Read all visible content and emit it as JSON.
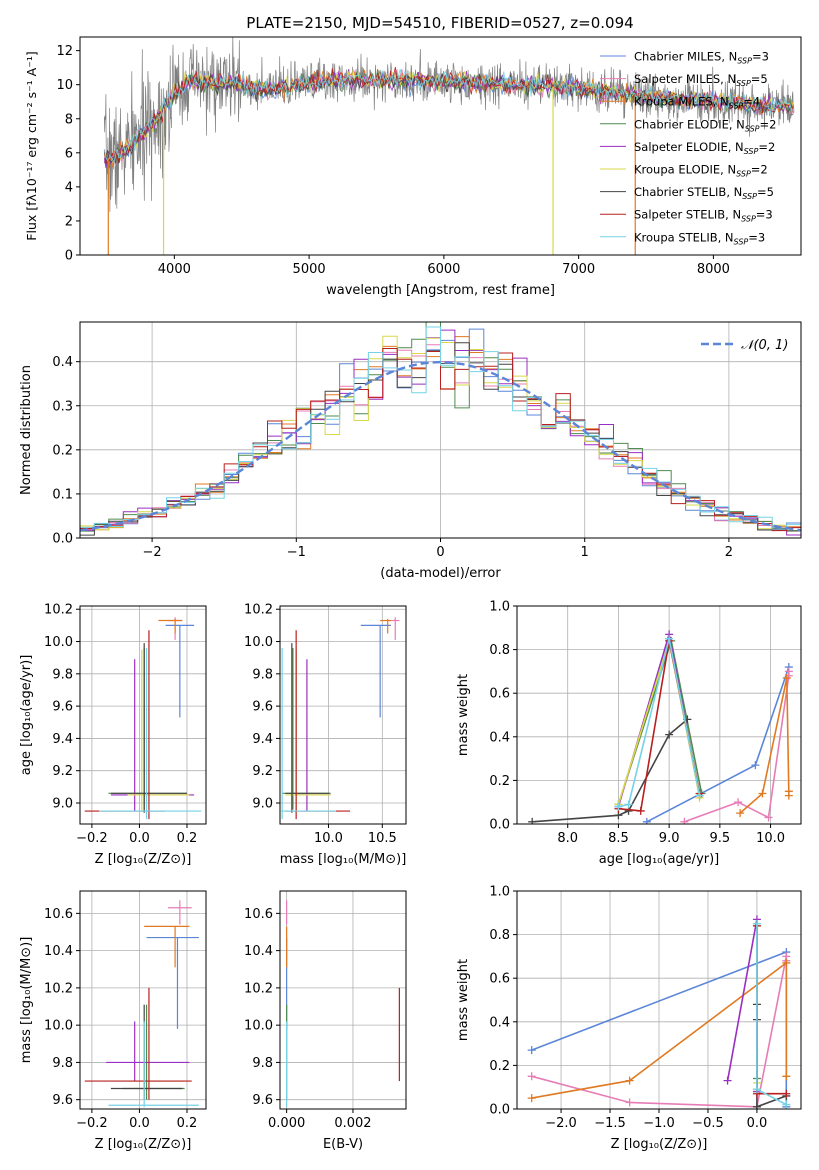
{
  "title": "PLATE=2150, MJD=54510, FIBERID=0527, z=0.094",
  "colors": {
    "blue": "#5b86d8",
    "orange": "#e07a22",
    "pink": "#e87cb6",
    "green": "#4f8a4f",
    "purple": "#9b2fc2",
    "yellow": "#d8d84a",
    "dark": "#454545",
    "red": "#b81f1f",
    "cyan": "#74d3e6",
    "grid": "#b0b0b0",
    "data": "#7f7f7f"
  },
  "chart_data": [
    {
      "id": "spectrum",
      "type": "line",
      "title": "PLATE=2150, MJD=54510, FIBERID=0527, z=0.094",
      "xlabel": "wavelength [Angstrom, rest frame]",
      "ylabel": "Flux [fλ10⁻¹⁷ erg cm⁻² s⁻¹ A⁻¹]",
      "xlim": [
        3300,
        8650
      ],
      "ylim": [
        0,
        12.8
      ],
      "xticks": [
        "4000",
        "5000",
        "6000",
        "7000",
        "8000"
      ],
      "yticks": [
        "0",
        "2",
        "4",
        "6",
        "8",
        "10",
        "12"
      ],
      "grid": false,
      "legend_position": "upper-right",
      "continuum": {
        "x": [
          3480,
          3550,
          3700,
          3850,
          4000,
          4100,
          4300,
          4500,
          4700,
          5000,
          5300,
          5600,
          5900,
          6200,
          6500,
          6800,
          7100,
          7300,
          7500,
          7800,
          8100,
          8300,
          8600
        ],
        "y": [
          5.8,
          5.6,
          6.6,
          7.8,
          9.5,
          10.2,
          10.1,
          10.0,
          9.7,
          10.1,
          10.3,
          10.3,
          10.2,
          10.1,
          10.0,
          9.9,
          9.7,
          9.5,
          9.3,
          9.1,
          9.0,
          8.8,
          8.7
        ]
      },
      "series": [
        {
          "name": "Chabrier MILES, N_SSP=3",
          "name_main": "Chabrier MILES, N",
          "name_sub": "SSP",
          "name_val": "=3",
          "color": "blue"
        },
        {
          "name": "Salpeter MILES, N_SSP=5",
          "name_main": "Salpeter MILES, N",
          "name_sub": "SSP",
          "name_val": "=5",
          "color": "pink"
        },
        {
          "name": "Kroupa MILES, N_SSP=4",
          "name_main": "Kroupa MILES, N",
          "name_sub": "SSP",
          "name_val": "=4",
          "color": "orange"
        },
        {
          "name": "Chabrier ELODIE, N_SSP=2",
          "name_main": "Chabrier ELODIE, N",
          "name_sub": "SSP",
          "name_val": "=2",
          "color": "green"
        },
        {
          "name": "Salpeter ELODIE, N_SSP=2",
          "name_main": "Salpeter ELODIE, N",
          "name_sub": "SSP",
          "name_val": "=2",
          "color": "purple"
        },
        {
          "name": "Kroupa ELODIE, N_SSP=2",
          "name_main": "Kroupa ELODIE, N",
          "name_sub": "SSP",
          "name_val": "=2",
          "color": "yellow"
        },
        {
          "name": "Chabrier STELIB, N_SSP=5",
          "name_main": "Chabrier STELIB, N",
          "name_sub": "SSP",
          "name_val": "=5",
          "color": "dark"
        },
        {
          "name": "Salpeter STELIB, N_SSP=3",
          "name_main": "Salpeter STELIB, N",
          "name_sub": "SSP",
          "name_val": "=3",
          "color": "red"
        },
        {
          "name": "Kroupa STELIB, N_SSP=3",
          "name_main": "Kroupa STELIB, N",
          "name_sub": "SSP",
          "name_val": "=3",
          "color": "cyan"
        }
      ],
      "drops": [
        {
          "x": 3510,
          "color": "orange"
        },
        {
          "x": 3920,
          "color": "yellow"
        },
        {
          "x": 6810,
          "color": "yellow"
        },
        {
          "x": 7420,
          "color": "orange"
        }
      ]
    },
    {
      "id": "residuals",
      "type": "histogram",
      "xlabel": "(data-model)/error",
      "ylabel": "Normed distribution",
      "xlim": [
        -2.5,
        2.5
      ],
      "ylim": [
        0,
        0.49
      ],
      "xticks": [
        "−2",
        "−1",
        "0",
        "1",
        "2"
      ],
      "yticks": [
        "0.0",
        "0.1",
        "0.2",
        "0.3",
        "0.4"
      ],
      "grid": true,
      "legend_position": "upper-right",
      "legend": "𝒩(0, 1)",
      "normal": {
        "mean": 0,
        "sigma": 1,
        "color": "blue",
        "style": "dashed"
      },
      "bin_width": 0.1
    },
    {
      "id": "age-vs-z",
      "type": "errorbar",
      "xlabel": "Z [log₁₀(Z/Z⊙)]",
      "ylabel": "age  [log₁₀(age/yr)]",
      "xlim": [
        -0.25,
        0.28
      ],
      "ylim": [
        8.87,
        10.22
      ],
      "xticks": [
        "−0.2",
        "0.0",
        "0.2"
      ],
      "yticks": [
        "9.0",
        "9.2",
        "9.4",
        "9.6",
        "9.8",
        "10.0",
        "10.2"
      ],
      "grid": true,
      "points": [
        {
          "color": "blue",
          "x": 0.17,
          "y": 10.1,
          "xerr": [
            0.06,
            0.06
          ],
          "yerr": [
            0.57,
            0
          ]
        },
        {
          "color": "pink",
          "x": 0.15,
          "y": 10.13,
          "xerr": [
            0.03,
            0.03
          ],
          "yerr": [
            0.12,
            0.02
          ]
        },
        {
          "color": "orange",
          "x": 0.15,
          "y": 10.13,
          "xerr": [
            0.07,
            0.03
          ],
          "yerr": [
            0.08,
            0.01
          ]
        },
        {
          "color": "green",
          "x": 0.02,
          "y": 9.06,
          "xerr": [
            0.15,
            0.18
          ],
          "yerr": [
            0.1,
            0.9
          ]
        },
        {
          "color": "purple",
          "x": -0.02,
          "y": 9.05,
          "xerr": [
            0.1,
            0.25
          ],
          "yerr": [
            0.1,
            0.84
          ]
        },
        {
          "color": "yellow",
          "x": 0.01,
          "y": 9.05,
          "xerr": [
            0.06,
            0.2
          ],
          "yerr": [
            0.1,
            0.9
          ]
        },
        {
          "color": "dark",
          "x": 0.02,
          "y": 9.06,
          "xerr": [
            0.14,
            0.18
          ],
          "yerr": [
            0.12,
            0.93
          ]
        },
        {
          "color": "red",
          "x": 0.04,
          "y": 8.95,
          "xerr": [
            0.27,
            0.07
          ],
          "yerr": [
            0.05,
            1.12
          ]
        },
        {
          "color": "cyan",
          "x": 0.03,
          "y": 8.95,
          "xerr": [
            0.2,
            0.23
          ],
          "yerr": [
            0.05,
            1.01
          ]
        }
      ]
    },
    {
      "id": "age-vs-mass",
      "type": "errorbar",
      "xlabel": "mass [log₁₀(M/M⊙)]",
      "ylabel": "",
      "xlim": [
        9.55,
        10.72
      ],
      "ylim": [
        8.87,
        10.22
      ],
      "xticks": [
        "10.0",
        "10.5"
      ],
      "yticks": [
        "9.0",
        "9.2",
        "9.4",
        "9.6",
        "9.8",
        "10.0",
        "10.2"
      ],
      "grid": true,
      "points": [
        {
          "color": "blue",
          "x": 10.48,
          "y": 10.1,
          "xerr": [
            0.18,
            0.1
          ],
          "yerr": [
            0.57,
            0
          ]
        },
        {
          "color": "pink",
          "x": 10.62,
          "y": 10.13,
          "xerr": [
            0.05,
            0.04
          ],
          "yerr": [
            0.12,
            0.02
          ]
        },
        {
          "color": "orange",
          "x": 10.55,
          "y": 10.13,
          "xerr": [
            0.07,
            0.03
          ],
          "yerr": [
            0.08,
            0.01
          ]
        },
        {
          "color": "green",
          "x": 9.67,
          "y": 9.06,
          "xerr": [
            0.1,
            0.35
          ],
          "yerr": [
            0.1,
            0.9
          ]
        },
        {
          "color": "purple",
          "x": 9.8,
          "y": 9.05,
          "xerr": [
            0.1,
            0.22
          ],
          "yerr": [
            0.1,
            0.84
          ]
        },
        {
          "color": "yellow",
          "x": 9.7,
          "y": 9.05,
          "xerr": [
            0.1,
            0.32
          ],
          "yerr": [
            0.1,
            0.9
          ]
        },
        {
          "color": "dark",
          "x": 9.66,
          "y": 9.06,
          "xerr": [
            0.06,
            0.35
          ],
          "yerr": [
            0.12,
            0.93
          ]
        },
        {
          "color": "red",
          "x": 9.7,
          "y": 8.95,
          "xerr": [
            0.1,
            0.5
          ],
          "yerr": [
            0.05,
            1.12
          ]
        },
        {
          "color": "cyan",
          "x": 9.57,
          "y": 8.95,
          "xerr": [
            0.01,
            0.5
          ],
          "yerr": [
            0.05,
            1.01
          ]
        }
      ]
    },
    {
      "id": "weight-vs-age",
      "type": "line",
      "xlabel": "age  [log₁₀(age/yr)]",
      "ylabel": "mass weight",
      "xlim": [
        7.5,
        10.3
      ],
      "ylim": [
        0,
        1.0
      ],
      "xticks": [
        "8.0",
        "8.5",
        "9.0",
        "9.5",
        "10.0"
      ],
      "yticks": [
        "0.0",
        "0.2",
        "0.4",
        "0.6",
        "0.8",
        "1.0"
      ],
      "grid": true,
      "series": [
        {
          "color": "blue",
          "x": [
            8.78,
            9.85,
            10.18
          ],
          "y": [
            0.01,
            0.27,
            0.72
          ]
        },
        {
          "color": "pink",
          "x": [
            9.15,
            9.68,
            9.98,
            10.18,
            10.18
          ],
          "y": [
            0.01,
            0.1,
            0.03,
            0.68,
            0.7
          ]
        },
        {
          "color": "orange",
          "x": [
            9.7,
            9.92,
            10.16,
            10.18,
            10.18
          ],
          "y": [
            0.05,
            0.14,
            0.67,
            0.15,
            0.13
          ]
        },
        {
          "color": "green",
          "x": [
            8.5,
            9.02,
            9.32
          ],
          "y": [
            0.09,
            0.84,
            0.14
          ]
        },
        {
          "color": "purple",
          "x": [
            8.5,
            9.0,
            9.3
          ],
          "y": [
            0.08,
            0.87,
            0.13
          ]
        },
        {
          "color": "yellow",
          "x": [
            8.5,
            9.0,
            9.3
          ],
          "y": [
            0.09,
            0.84,
            0.12
          ]
        },
        {
          "color": "dark",
          "x": [
            7.65,
            8.5,
            8.6,
            9.0,
            9.18
          ],
          "y": [
            0.01,
            0.04,
            0.06,
            0.41,
            0.48
          ]
        },
        {
          "color": "red",
          "x": [
            8.5,
            8.72,
            9.0,
            9.3
          ],
          "y": [
            0.07,
            0.06,
            0.84,
            0.14
          ]
        },
        {
          "color": "cyan",
          "x": [
            8.5,
            8.6,
            9.0,
            9.3
          ],
          "y": [
            0.08,
            0.09,
            0.85,
            0.13
          ]
        }
      ]
    },
    {
      "id": "mass-vs-z",
      "type": "errorbar",
      "xlabel": "Z [log₁₀(Z/Z⊙)]",
      "ylabel": "mass [log₁₀(M/M⊙)]",
      "xlim": [
        -0.25,
        0.28
      ],
      "ylim": [
        9.55,
        10.72
      ],
      "xticks": [
        "−0.2",
        "0.0",
        "0.2"
      ],
      "yticks": [
        "9.6",
        "9.8",
        "10.0",
        "10.2",
        "10.4",
        "10.6"
      ],
      "grid": true,
      "points": [
        {
          "color": "blue",
          "x": 0.16,
          "y": 10.47,
          "xerr": [
            0.13,
            0.09
          ],
          "yerr": [
            0.49,
            0
          ]
        },
        {
          "color": "pink",
          "x": 0.17,
          "y": 10.63,
          "xerr": [
            0.05,
            0.05
          ],
          "yerr": [
            0.09,
            0.04
          ]
        },
        {
          "color": "orange",
          "x": 0.15,
          "y": 10.53,
          "xerr": [
            0.13,
            0.06
          ],
          "yerr": [
            0.22,
            0
          ]
        },
        {
          "color": "green",
          "x": 0.03,
          "y": 9.66,
          "xerr": [
            0.1,
            0.16
          ],
          "yerr": [
            0.06,
            0.45
          ]
        },
        {
          "color": "purple",
          "x": -0.02,
          "y": 9.8,
          "xerr": [
            0.12,
            0.23
          ],
          "yerr": [
            0.1,
            0.22
          ]
        },
        {
          "color": "yellow",
          "x": 0.02,
          "y": 9.7,
          "xerr": [
            0.07,
            0.17
          ],
          "yerr": [
            0.08,
            0.23
          ]
        },
        {
          "color": "dark",
          "x": 0.02,
          "y": 9.66,
          "xerr": [
            0.14,
            0.16
          ],
          "yerr": [
            0.06,
            0.45
          ]
        },
        {
          "color": "red",
          "x": 0.04,
          "y": 9.7,
          "xerr": [
            0.27,
            0.18
          ],
          "yerr": [
            0.1,
            0.5
          ]
        },
        {
          "color": "cyan",
          "x": 0.02,
          "y": 9.57,
          "xerr": [
            0.15,
            0.23
          ],
          "yerr": [
            0.01,
            0.45
          ]
        }
      ]
    },
    {
      "id": "mass-vs-ebv",
      "type": "errorbar",
      "xlabel": "E(B-V)",
      "ylabel": "",
      "xlim": [
        -0.0002,
        0.0036
      ],
      "ylim": [
        9.55,
        10.72
      ],
      "xticks": [
        "0.000",
        "0.002"
      ],
      "yticks": [
        "9.6",
        "9.8",
        "10.0",
        "10.2",
        "10.4",
        "10.6"
      ],
      "grid": true,
      "points": [
        {
          "color": "blue",
          "x": 0.0,
          "y": 10.47,
          "xerr": [
            0,
            0
          ],
          "yerr": [
            0.49,
            0
          ]
        },
        {
          "color": "pink",
          "x": 0.0,
          "y": 10.63,
          "xerr": [
            0,
            0
          ],
          "yerr": [
            0.09,
            0.04
          ]
        },
        {
          "color": "orange",
          "x": 0.0,
          "y": 10.53,
          "xerr": [
            0,
            0
          ],
          "yerr": [
            0.22,
            0
          ]
        },
        {
          "color": "green",
          "x": 0.0,
          "y": 9.66,
          "xerr": [
            0,
            0
          ],
          "yerr": [
            0.06,
            0.45
          ]
        },
        {
          "color": "yellow",
          "x": 0.0,
          "y": 9.7,
          "xerr": [
            0,
            0
          ],
          "yerr": [
            0.08,
            0.23
          ]
        },
        {
          "color": "red",
          "x": 0.0034,
          "y": 9.7,
          "xerr": [
            0,
            0
          ],
          "yerr": [
            0,
            0.5
          ]
        },
        {
          "color": "cyan",
          "x": 0.0,
          "y": 9.57,
          "xerr": [
            0,
            0
          ],
          "yerr": [
            0.01,
            0.45
          ]
        }
      ]
    },
    {
      "id": "weight-vs-z",
      "type": "line",
      "xlabel": "Z [log₁₀(Z/Z⊙)]",
      "ylabel": "mass weight",
      "xlim": [
        -2.45,
        0.45
      ],
      "ylim": [
        0,
        1.0
      ],
      "xticks": [
        "−2.0",
        "−1.5",
        "−1.0",
        "−0.5",
        "0.0"
      ],
      "yticks": [
        "0.0",
        "0.2",
        "0.4",
        "0.6",
        "0.8",
        "1.0"
      ],
      "grid": true,
      "series": [
        {
          "color": "blue",
          "x": [
            -2.3,
            0.3,
            0.3
          ],
          "y": [
            0.27,
            0.72,
            0.01
          ]
        },
        {
          "color": "pink",
          "x": [
            -2.3,
            -1.3,
            0.0,
            0.3,
            0.3
          ],
          "y": [
            0.15,
            0.03,
            0.01,
            0.7,
            0.68
          ]
        },
        {
          "color": "orange",
          "x": [
            -2.3,
            -1.3,
            0.3,
            0.3
          ],
          "y": [
            0.05,
            0.13,
            0.67,
            0.15
          ]
        },
        {
          "color": "green",
          "x": [
            0.0,
            0.0,
            0.0
          ],
          "y": [
            0.09,
            0.84,
            0.14
          ]
        },
        {
          "color": "purple",
          "x": [
            -0.3,
            0.0,
            0.0
          ],
          "y": [
            0.13,
            0.87,
            0.08
          ]
        },
        {
          "color": "yellow",
          "x": [
            0.0,
            0.0,
            0.0
          ],
          "y": [
            0.09,
            0.84,
            0.12
          ]
        },
        {
          "color": "dark",
          "x": [
            0.0,
            0.0,
            0.0,
            0.3
          ],
          "y": [
            0.48,
            0.41,
            0.01,
            0.06
          ]
        },
        {
          "color": "red",
          "x": [
            0.0,
            0.0,
            0.3
          ],
          "y": [
            0.84,
            0.07,
            0.07
          ]
        },
        {
          "color": "cyan",
          "x": [
            0.0,
            0.0,
            0.3
          ],
          "y": [
            0.85,
            0.09,
            0.02
          ]
        }
      ]
    }
  ]
}
